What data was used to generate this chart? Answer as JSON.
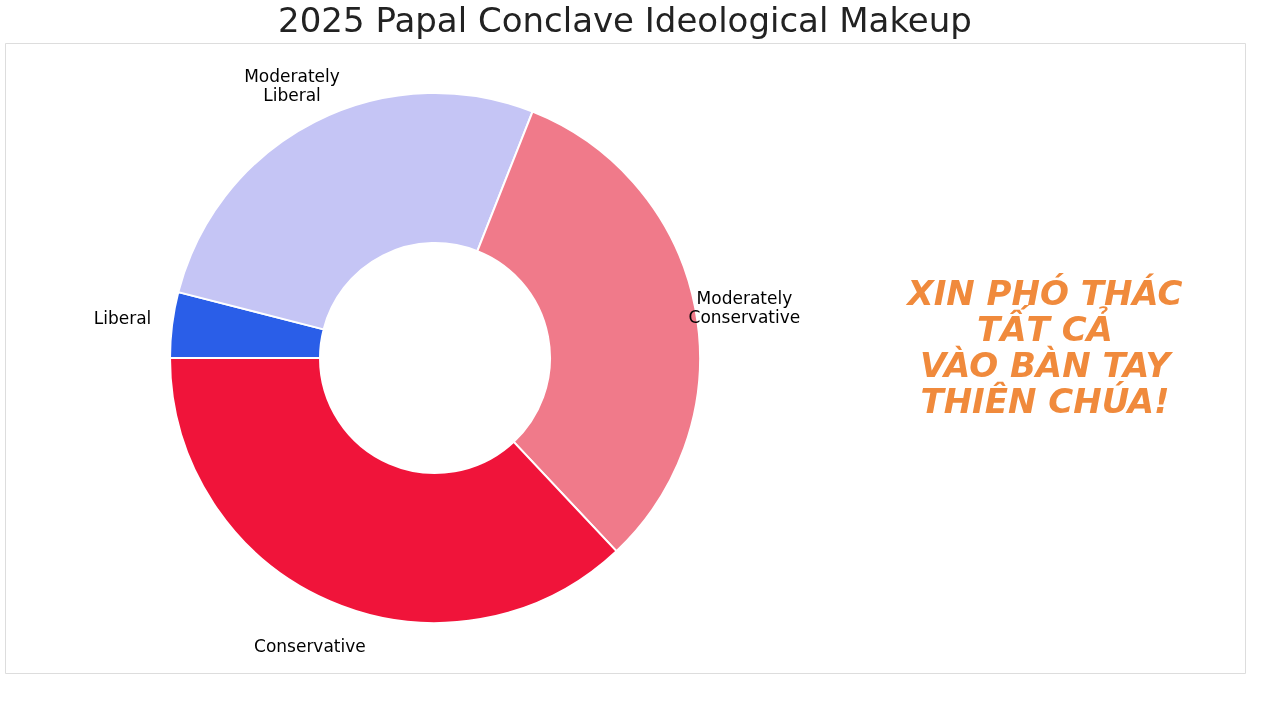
{
  "chart_data": {
    "type": "donut",
    "title": "2025 Papal Conclave Ideological Makeup",
    "categories": [
      "Liberal",
      "Moderately Liberal",
      "Moderately Conservative",
      "Conservative"
    ],
    "values": [
      4,
      27,
      32,
      37
    ],
    "colors": [
      "#2a5ee8",
      "#c5c5f5",
      "#f07a8a",
      "#f0143a"
    ],
    "annotations": [
      "XIN PHÓ THÁC\nTẤT CẢ\nVÀO BÀN TAY\nTHIÊN CHÚA!"
    ]
  }
}
